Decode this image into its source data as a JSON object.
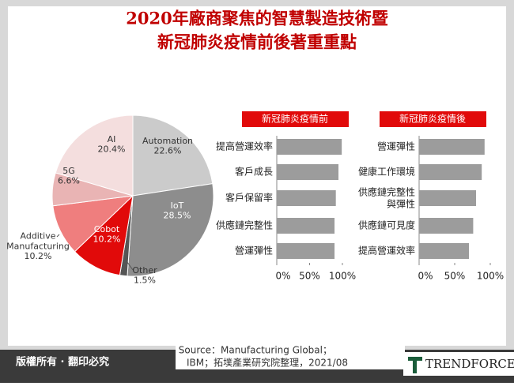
{
  "chart_data": [
    {
      "type": "pie",
      "title": [
        "2020年廠商聚焦的智慧製造技術暨",
        "新冠肺炎疫情前後著重重點"
      ],
      "categories": [
        [
          "Automation"
        ],
        [
          "IoT"
        ],
        [
          "Other"
        ],
        [
          "Cobot"
        ],
        [
          "Additive",
          "Manufacturing"
        ],
        [
          "5G"
        ],
        [
          "AI"
        ]
      ],
      "values": [
        22.6,
        28.5,
        1.5,
        10.2,
        10.2,
        6.6,
        20.4
      ],
      "value_labels": [
        "22.6%",
        "28.5%",
        "1.5%",
        "10.2%",
        "10.2%",
        "6.6%",
        "20.4%"
      ],
      "colors": [
        "#cbcbcb",
        "#8d8d8d",
        "#555555",
        "#e10a0a",
        "#ef7e7e",
        "#e9b4b4",
        "#f4dede"
      ]
    },
    {
      "type": "barh",
      "title": "新冠肺炎疫情前",
      "categories": [
        "提高營運效率",
        "客戶成長",
        "客戶保留率",
        "供應鏈完整性",
        "營運彈性"
      ],
      "values": [
        99,
        94,
        90,
        88,
        88
      ],
      "color": "#9c9c9c",
      "xlim": [
        0,
        100
      ],
      "xticks": [
        {
          "value": 0,
          "label": "0%"
        },
        {
          "value": 50,
          "label": "50%"
        },
        {
          "value": 100,
          "label": "100%"
        }
      ]
    },
    {
      "type": "barh",
      "title": "新冠肺炎疫情後",
      "categories": [
        "營運彈性",
        "健康工作環境",
        "供應鏈完整性\n與彈性",
        "供應鏈可見度",
        "提高營運效率"
      ],
      "values": [
        92,
        88,
        80,
        76,
        70
      ],
      "color": "#9c9c9c",
      "xlim": [
        0,
        100
      ],
      "xticks": [
        {
          "value": 0,
          "label": "0%"
        },
        {
          "value": 50,
          "label": "50%"
        },
        {
          "value": 100,
          "label": "100%"
        }
      ]
    }
  ],
  "footer": {
    "rights": "版權所有 · 翻印必究",
    "source": [
      "Source：Manufacturing Global；",
      "IBM；拓墣產業研究院整理，2021/08"
    ],
    "logo": "TRENDFORCE"
  }
}
